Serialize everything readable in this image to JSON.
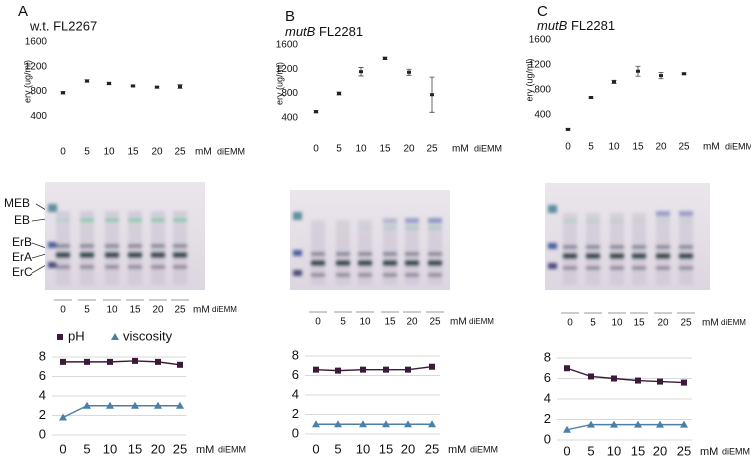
{
  "panels": [
    {
      "letter": "A",
      "strain": "w.t. FL2267",
      "gel": {
        "band_labels": [
          "MEB",
          "EB",
          "ErB",
          "ErA",
          "ErC"
        ],
        "lanes": [
          "0",
          "5",
          "10",
          "15",
          "20",
          "25"
        ],
        "unit": "mM",
        "medium": "diEMM"
      }
    },
    {
      "letter": "B",
      "strain_italic": "mutB",
      "strain": "FL2281",
      "gel": {
        "lanes": [
          "0",
          "5",
          "10",
          "15",
          "20",
          "25"
        ],
        "unit": "mM",
        "medium": "diEMM"
      }
    },
    {
      "letter": "C",
      "strain_italic": "mutB",
      "strain": "FL2281",
      "gel": {
        "lanes": [
          "0",
          "5",
          "10",
          "15",
          "20",
          "25"
        ],
        "unit": "mM",
        "medium": "diEMM"
      }
    }
  ],
  "chart_data": [
    {
      "type": "errorbar",
      "ylabel": "ery (ug/ml)",
      "categories": [
        "0",
        "5",
        "10",
        "15",
        "20",
        "25"
      ],
      "x_unit": "mM",
      "xlabel": "diEMM",
      "values": [
        780,
        970,
        930,
        890,
        870,
        880
      ],
      "errors": [
        20,
        20,
        20,
        15,
        15,
        30
      ],
      "color": "#222222",
      "ylim": [
        0,
        1600
      ],
      "yticks": [
        400,
        800,
        1200,
        1600
      ]
    },
    {
      "type": "errorbar",
      "ylabel": "ery (ug/ml)",
      "categories": [
        "0",
        "5",
        "10",
        "15",
        "20",
        "25"
      ],
      "x_unit": "mM",
      "xlabel": "diEMM",
      "values": [
        500,
        800,
        1160,
        1380,
        1150,
        780
      ],
      "errors": [
        20,
        25,
        70,
        20,
        50,
        290
      ],
      "color": "#222222",
      "ylim": [
        0,
        1600
      ],
      "yticks": [
        400,
        800,
        1200,
        1600
      ]
    },
    {
      "type": "errorbar",
      "ylabel": "ery (ug/ml)",
      "categories": [
        "0",
        "5",
        "10",
        "15",
        "20",
        "25"
      ],
      "x_unit": "mM",
      "xlabel": "diEMM",
      "values": [
        170,
        680,
        930,
        1100,
        1030,
        1060
      ],
      "errors": [
        15,
        10,
        25,
        80,
        50,
        15
      ],
      "color": "#222222",
      "ylim": [
        0,
        1600
      ],
      "yticks": [
        400,
        800,
        1200,
        1600
      ]
    },
    {
      "type": "line",
      "categories": [
        "0",
        "5",
        "10",
        "15",
        "20",
        "25"
      ],
      "x_unit": "mM",
      "xlabel": "diEMM",
      "legend": true,
      "grid": true,
      "series": [
        {
          "name": "pH",
          "color": "#3b1a3a",
          "marker": "square",
          "values": [
            7.5,
            7.5,
            7.5,
            7.6,
            7.5,
            7.2
          ]
        },
        {
          "name": "viscosity",
          "color": "#4a7fa8",
          "marker": "triangle",
          "values": [
            1.8,
            3,
            3,
            3,
            3,
            3
          ]
        }
      ],
      "ylim": [
        0,
        8
      ],
      "yticks": [
        0,
        2,
        4,
        6,
        8
      ]
    },
    {
      "type": "line",
      "categories": [
        "0",
        "5",
        "10",
        "15",
        "20",
        "25"
      ],
      "x_unit": "mM",
      "xlabel": "diEMM",
      "legend": false,
      "grid": true,
      "series": [
        {
          "color": "#3b1a3a",
          "marker": "square",
          "values": [
            6.6,
            6.5,
            6.6,
            6.6,
            6.6,
            6.9
          ]
        },
        {
          "color": "#4a7fa8",
          "marker": "triangle",
          "values": [
            1,
            1,
            1,
            1,
            1,
            1
          ]
        }
      ],
      "ylim": [
        0,
        8
      ],
      "yticks": [
        0,
        2,
        4,
        6,
        8
      ]
    },
    {
      "type": "line",
      "categories": [
        "0",
        "5",
        "10",
        "15",
        "20",
        "25"
      ],
      "x_unit": "mM",
      "xlabel": "diEMM",
      "legend": false,
      "grid": true,
      "series": [
        {
          "color": "#3b1a3a",
          "marker": "square",
          "values": [
            7.0,
            6.2,
            6.0,
            5.8,
            5.7,
            5.6
          ]
        },
        {
          "color": "#4a7fa8",
          "marker": "triangle",
          "values": [
            1.0,
            1.5,
            1.5,
            1.5,
            1.5,
            1.5
          ]
        }
      ],
      "ylim": [
        0,
        8
      ],
      "yticks": [
        0,
        2,
        4,
        6,
        8
      ]
    }
  ]
}
